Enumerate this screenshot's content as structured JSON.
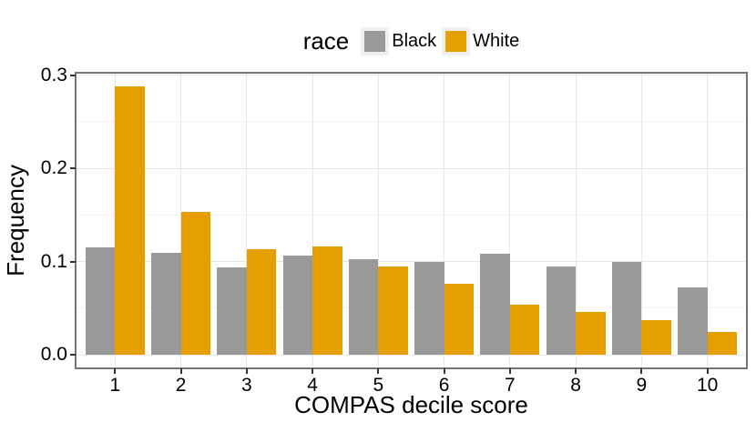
{
  "chart_data": {
    "type": "bar",
    "title": "",
    "xlabel": "COMPAS decile score",
    "ylabel": "Frequency",
    "categories": [
      "1",
      "2",
      "3",
      "4",
      "5",
      "6",
      "7",
      "8",
      "9",
      "10"
    ],
    "series": [
      {
        "name": "Black",
        "color": "#999999",
        "values": [
          0.115,
          0.109,
          0.094,
          0.106,
          0.102,
          0.1,
          0.108,
          0.095,
          0.1,
          0.072
        ]
      },
      {
        "name": "White",
        "color": "#E69F00",
        "values": [
          0.288,
          0.153,
          0.113,
          0.116,
          0.095,
          0.076,
          0.054,
          0.046,
          0.037,
          0.024
        ]
      }
    ],
    "ylim": [
      0,
      0.3
    ],
    "y_major_ticks": [
      0,
      0.1,
      0.2,
      0.3
    ],
    "y_tick_labels": [
      "0.0",
      "0.1",
      "0.2",
      "0.3"
    ],
    "y_minor_ticks": [
      0.05,
      0.15,
      0.25
    ],
    "legend": {
      "title": "race",
      "position": "top",
      "entries": [
        "Black",
        "White"
      ]
    },
    "layout": {
      "grid_h_major": true,
      "grid_h_minor": true,
      "grid_v_major": true,
      "bar_mode": "dodged"
    },
    "colors": {
      "panel_border": "#757575",
      "grid_major": "#e7e7e7",
      "grid_minor": "#f4f4f4",
      "tick_mark": "#333333",
      "legend_key_bg": "#f0f0f0",
      "background": "#ffffff"
    }
  }
}
